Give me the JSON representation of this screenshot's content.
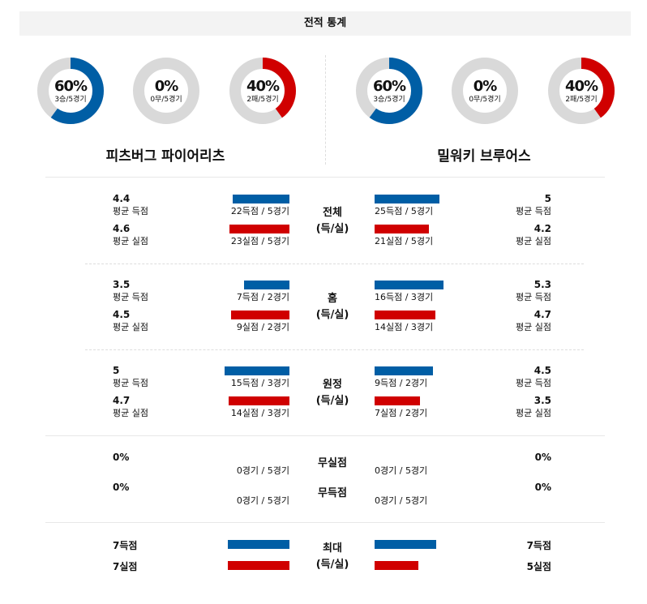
{
  "title": "전적 통계",
  "colors": {
    "blue": "#005ea5",
    "red": "#d00000",
    "track": "#d9d9d9"
  },
  "teams": [
    {
      "name": "피츠버그 파이어리츠",
      "donuts": [
        {
          "pct": "60%",
          "sub": "3승/5경기",
          "value": 60,
          "color": "#005ea5"
        },
        {
          "pct": "0%",
          "sub": "0무/5경기",
          "value": 0,
          "color": "#005ea5"
        },
        {
          "pct": "40%",
          "sub": "2패/5경기",
          "value": 40,
          "color": "#d00000"
        }
      ]
    },
    {
      "name": "밀워키 브루어스",
      "donuts": [
        {
          "pct": "60%",
          "sub": "3승/5경기",
          "value": 60,
          "color": "#005ea5"
        },
        {
          "pct": "0%",
          "sub": "0무/5경기",
          "value": 0,
          "color": "#005ea5"
        },
        {
          "pct": "40%",
          "sub": "2패/5경기",
          "value": 40,
          "color": "#d00000"
        }
      ]
    }
  ],
  "labels": {
    "avg_scored": "평균 득점",
    "avg_allowed": "평균 실점"
  },
  "sections": [
    {
      "title": "전체",
      "subtitle": "(득/실)",
      "left": {
        "scored": 4.4,
        "scored_text": "22득점 / 5경기",
        "allowed": 4.6,
        "allowed_text": "23실점 / 5경기"
      },
      "right": {
        "scored": 5,
        "scored_text": "25득점 / 5경기",
        "allowed": 4.2,
        "allowed_text": "21실점 / 5경기"
      }
    },
    {
      "title": "홈",
      "subtitle": "(득/실)",
      "left": {
        "scored": 3.5,
        "scored_text": "7득점 / 2경기",
        "allowed": 4.5,
        "allowed_text": "9실점 / 2경기"
      },
      "right": {
        "scored": 5.3,
        "scored_text": "16득점 / 3경기",
        "allowed": 4.7,
        "allowed_text": "14실점 / 3경기"
      }
    },
    {
      "title": "원정",
      "subtitle": "(득/실)",
      "left": {
        "scored": 5,
        "scored_text": "15득점 / 3경기",
        "allowed": 4.7,
        "allowed_text": "14실점 / 3경기"
      },
      "right": {
        "scored": 4.5,
        "scored_text": "9득점 / 2경기",
        "allowed": 3.5,
        "allowed_text": "7실점 / 2경기"
      }
    }
  ],
  "shutout": {
    "rows": [
      {
        "title": "무실점",
        "left": "0%",
        "left_text": "0경기 / 5경기",
        "right": "0%",
        "right_text": "0경기 / 5경기"
      },
      {
        "title": "무득점",
        "left": "0%",
        "left_text": "0경기 / 5경기",
        "right": "0%",
        "right_text": "0경기 / 5경기"
      }
    ]
  },
  "max": {
    "title": "최대",
    "subtitle": "(득/실)",
    "left": {
      "scored": "7득점",
      "scored_value": 7,
      "allowed": "7실점",
      "allowed_value": 7
    },
    "right": {
      "scored": "7득점",
      "scored_value": 7,
      "allowed": "5실점",
      "allowed_value": 5
    }
  }
}
